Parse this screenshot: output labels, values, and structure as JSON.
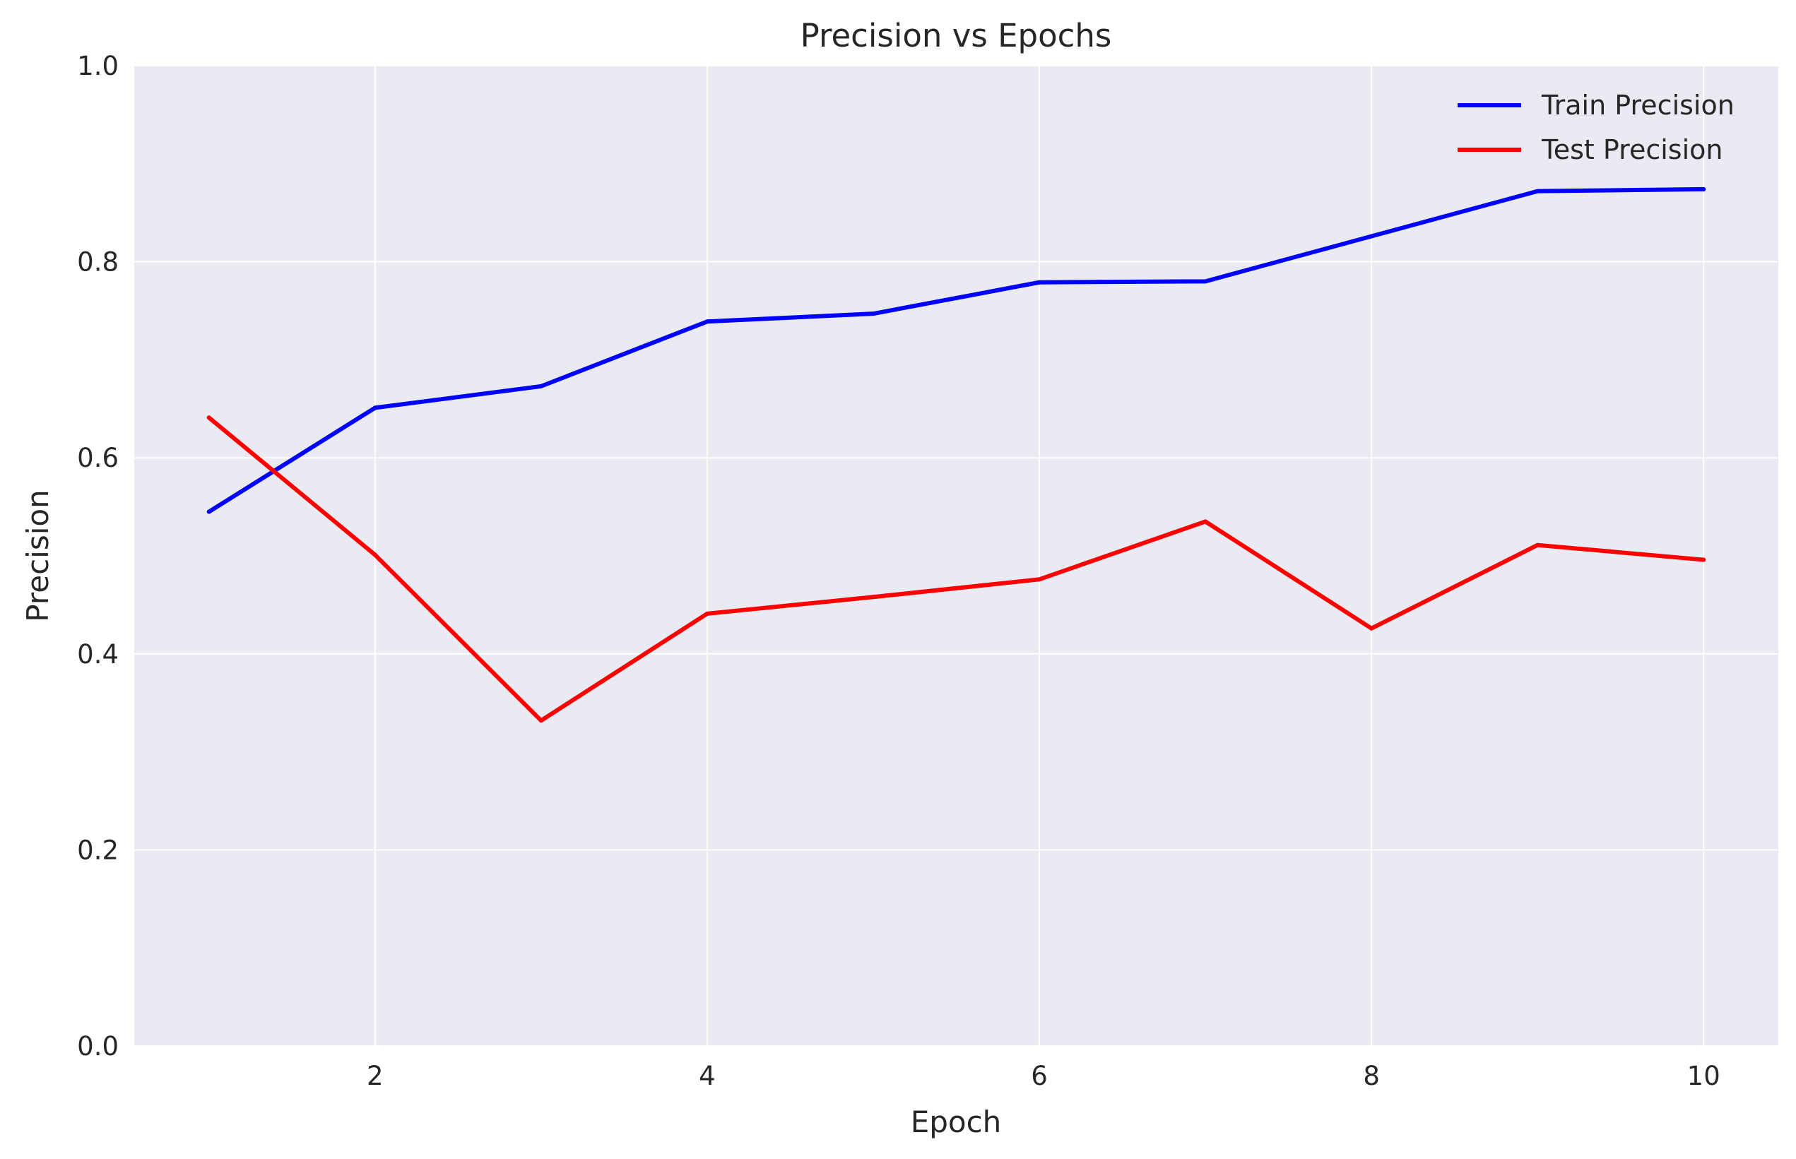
{
  "chart_data": {
    "type": "line",
    "title": "Precision vs Epochs",
    "xlabel": "Epoch",
    "ylabel": "Precision",
    "x": [
      1,
      2,
      3,
      4,
      5,
      6,
      7,
      8,
      9,
      10
    ],
    "xlim": [
      0.55,
      10.45
    ],
    "ylim": [
      0.0,
      1.0
    ],
    "xticks": [
      2,
      4,
      6,
      8,
      10
    ],
    "yticks": [
      0.0,
      0.2,
      0.4,
      0.6,
      0.8,
      1.0
    ],
    "xtick_labels": [
      "2",
      "4",
      "6",
      "8",
      "10"
    ],
    "ytick_labels": [
      "0.0",
      "0.2",
      "0.4",
      "0.6",
      "0.8",
      "1.0"
    ],
    "grid": true,
    "legend_position": "top-right",
    "series": [
      {
        "name": "Train Precision",
        "color": "#0000ff",
        "values": [
          0.545,
          0.651,
          0.673,
          0.739,
          0.747,
          0.779,
          0.78,
          0.826,
          0.872,
          0.874
        ]
      },
      {
        "name": "Test Precision",
        "color": "#ff0000",
        "values": [
          0.641,
          0.501,
          0.332,
          0.441,
          0.458,
          0.476,
          0.535,
          0.426,
          0.511,
          0.496
        ]
      }
    ]
  },
  "colors": {
    "plot_background": "#eaeaf2",
    "grid": "#ffffff"
  }
}
